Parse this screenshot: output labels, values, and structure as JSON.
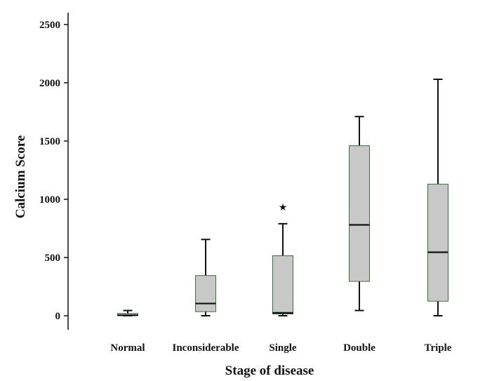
{
  "chart_data": {
    "type": "box",
    "title": "",
    "xlabel": "Stage of disease",
    "ylabel": "Calcium Score",
    "ylim": [
      0,
      2500
    ],
    "yticks": [
      0,
      500,
      1000,
      1500,
      2000,
      2500
    ],
    "grid": false,
    "legend": "none",
    "box_fill": "#c8c8c8",
    "box_stroke": "#3d6e3d",
    "whisker_color": "#111111",
    "categories": [
      "Normal",
      "Inconsiderable",
      "Single",
      "Double",
      "Triple"
    ],
    "boxes": [
      {
        "category": "Normal",
        "min": 0,
        "q1": 0,
        "median": 5,
        "q3": 20,
        "max": 45,
        "outliers": []
      },
      {
        "category": "Inconsiderable",
        "min": 0,
        "q1": 35,
        "median": 105,
        "q3": 345,
        "max": 655,
        "outliers": []
      },
      {
        "category": "Single",
        "min": 0,
        "q1": 15,
        "median": 25,
        "q3": 515,
        "max": 790,
        "outliers": [
          935
        ]
      },
      {
        "category": "Double",
        "min": 45,
        "q1": 295,
        "median": 780,
        "q3": 1460,
        "max": 1710,
        "outliers": []
      },
      {
        "category": "Triple",
        "min": 0,
        "q1": 125,
        "median": 545,
        "q3": 1130,
        "max": 2030,
        "outliers": []
      }
    ]
  }
}
